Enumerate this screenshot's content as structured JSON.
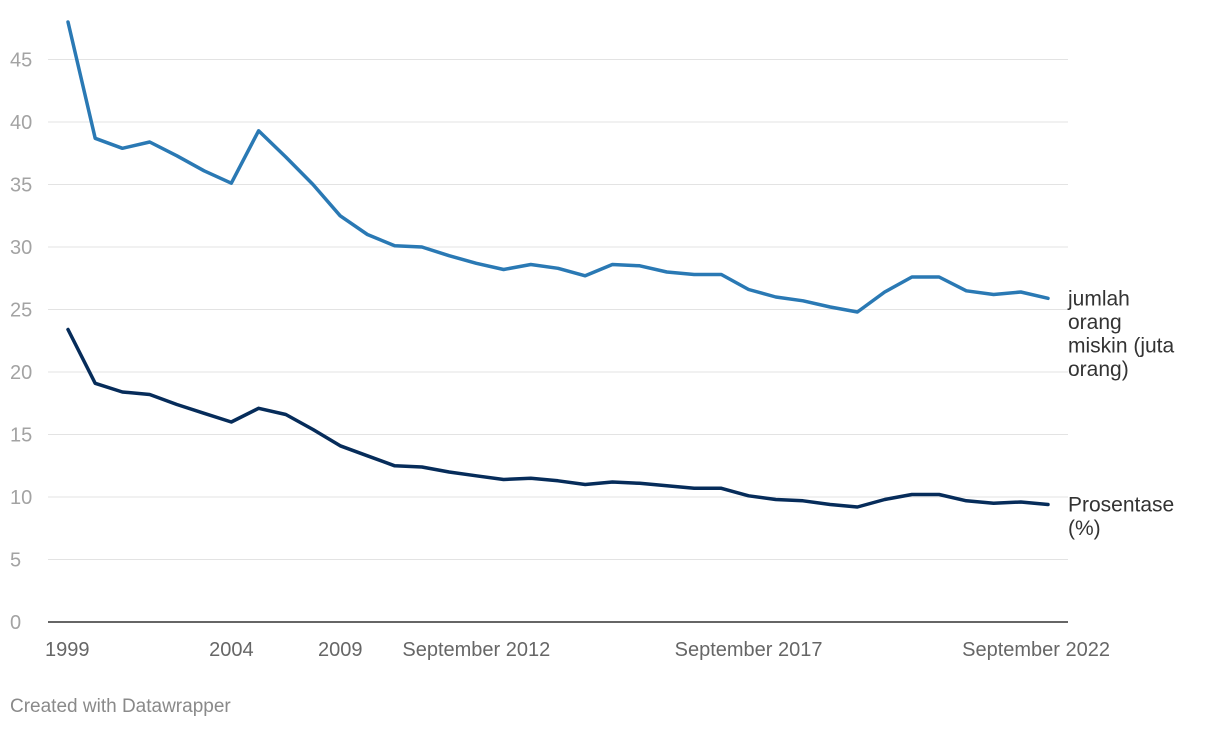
{
  "chart_data": {
    "type": "line",
    "title": "",
    "xlabel": "",
    "ylabel": "",
    "ylim": [
      0,
      48
    ],
    "y_ticks": [
      0,
      5,
      10,
      15,
      20,
      25,
      30,
      35,
      40,
      45
    ],
    "x_tick_labels": [
      {
        "label": "1999",
        "index": 0
      },
      {
        "label": "2004",
        "index": 6
      },
      {
        "label": "2009",
        "index": 10
      },
      {
        "label": "September 2012",
        "index": 15
      },
      {
        "label": "September 2017",
        "index": 25
      },
      {
        "label": "September 2022",
        "index": 35
      }
    ],
    "grid": true,
    "series": [
      {
        "name": "jumlah orang miskin (juta orang)",
        "color": "#2a79b4",
        "values": [
          48.0,
          38.7,
          37.9,
          38.4,
          37.3,
          36.1,
          35.1,
          39.3,
          37.2,
          35.0,
          32.5,
          31.0,
          30.1,
          30.0,
          29.3,
          28.7,
          28.2,
          28.6,
          28.3,
          27.7,
          28.6,
          28.5,
          28.0,
          27.8,
          27.8,
          26.6,
          26.0,
          25.7,
          25.2,
          24.8,
          26.4,
          27.6,
          27.6,
          26.5,
          26.2,
          26.4,
          25.9
        ]
      },
      {
        "name": "Prosentase (%)",
        "color": "#062c5a",
        "values": [
          23.4,
          19.1,
          18.4,
          18.2,
          17.4,
          16.7,
          16.0,
          17.1,
          16.6,
          15.4,
          14.1,
          13.3,
          12.5,
          12.4,
          12.0,
          11.7,
          11.4,
          11.5,
          11.3,
          11.0,
          11.2,
          11.1,
          10.9,
          10.7,
          10.7,
          10.1,
          9.8,
          9.7,
          9.4,
          9.2,
          9.8,
          10.2,
          10.2,
          9.7,
          9.5,
          9.6,
          9.4
        ]
      }
    ],
    "series_labels": [
      {
        "series": 0,
        "lines": [
          "jumlah",
          "orang",
          "miskin (juta",
          "orang)"
        ]
      },
      {
        "series": 1,
        "lines": [
          "Prosentase",
          "(%)"
        ]
      }
    ]
  },
  "footer": {
    "credit": "Created with Datawrapper"
  }
}
